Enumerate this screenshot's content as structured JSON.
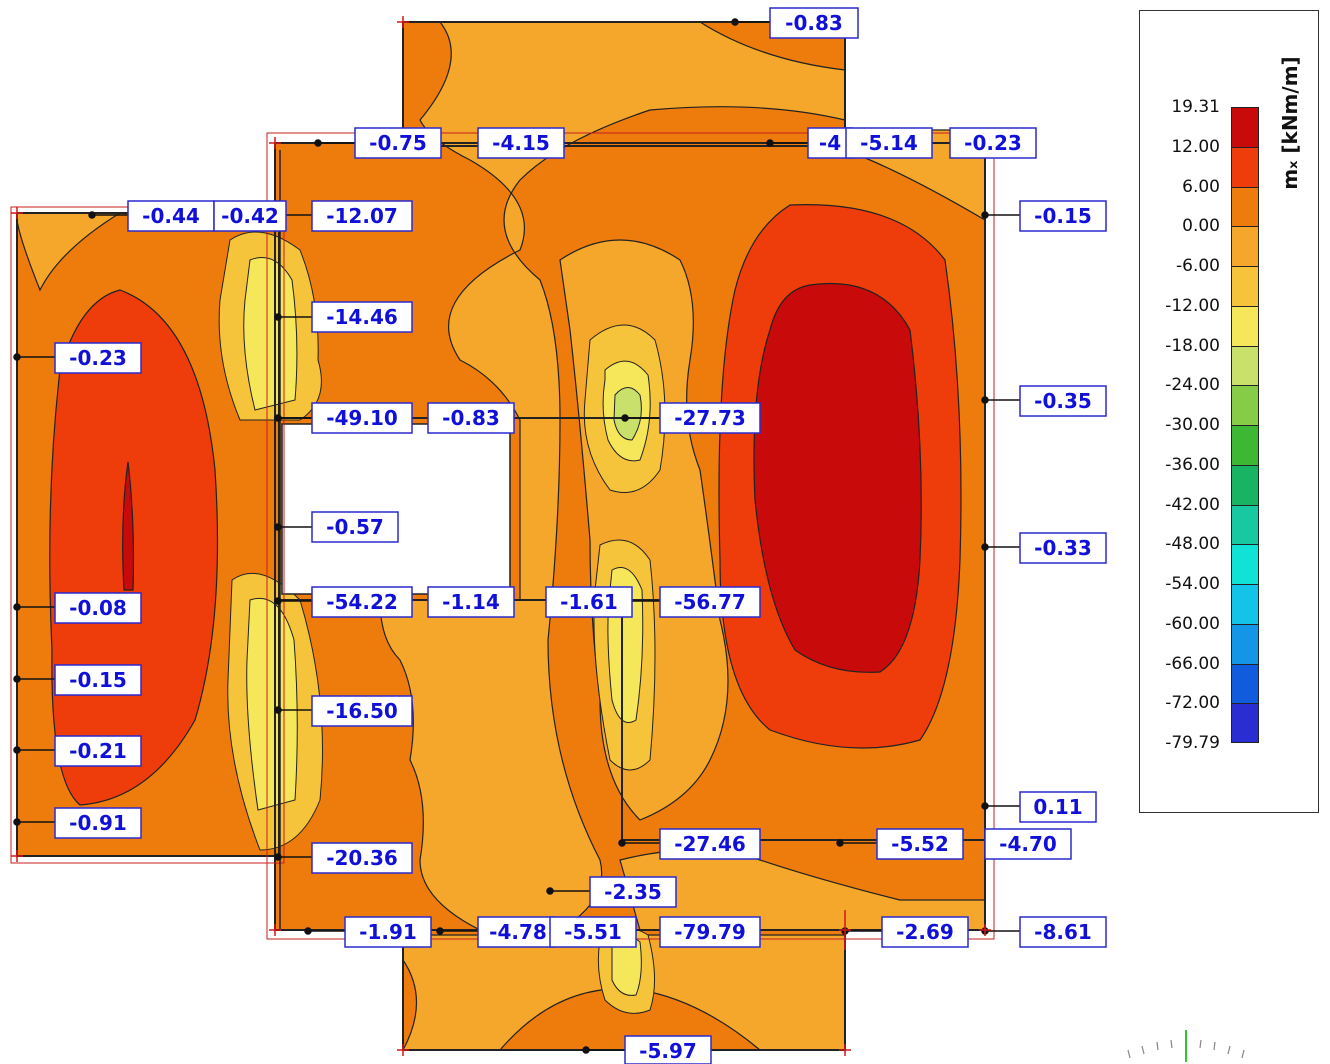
{
  "legend": {
    "title": "mₓ [kNm/m]",
    "values": [
      "19.31",
      "12.00",
      "6.00",
      "0.00",
      "-6.00",
      "-12.00",
      "-18.00",
      "-24.00",
      "-30.00",
      "-36.00",
      "-42.00",
      "-48.00",
      "-54.00",
      "-60.00",
      "-66.00",
      "-72.00",
      "-79.79"
    ],
    "colors": [
      "#c80a0a",
      "#ee3c0a",
      "#ee7c0c",
      "#f4a72a",
      "#f5c43a",
      "#f6e65a",
      "#c9e06a",
      "#86cc46",
      "#3cb834",
      "#18b464",
      "#18c8a0",
      "#10e2d6",
      "#14c4e8",
      "#1496e6",
      "#105cdc",
      "#2a2ed2"
    ]
  },
  "labels": [
    {
      "id": "a01",
      "text": "-0.83"
    },
    {
      "id": "a02",
      "text": "-0.75"
    },
    {
      "id": "a03",
      "text": "-4.15"
    },
    {
      "id": "a04",
      "text": "-4"
    },
    {
      "id": "a05",
      "text": "-5.14"
    },
    {
      "id": "a06",
      "text": "-0.23"
    },
    {
      "id": "a07",
      "text": "-0.44"
    },
    {
      "id": "a08",
      "text": "-0.42"
    },
    {
      "id": "a09",
      "text": "-12.07"
    },
    {
      "id": "a10",
      "text": "-0.15"
    },
    {
      "id": "a11",
      "text": "-14.46"
    },
    {
      "id": "a12",
      "text": "-0.23"
    },
    {
      "id": "a13",
      "text": "-0.35"
    },
    {
      "id": "a14",
      "text": "-49.10"
    },
    {
      "id": "a15",
      "text": "-0.83"
    },
    {
      "id": "a16",
      "text": "-27.73"
    },
    {
      "id": "a17",
      "text": "-0.57"
    },
    {
      "id": "a18",
      "text": "-0.33"
    },
    {
      "id": "a19",
      "text": "-54.22"
    },
    {
      "id": "a20",
      "text": "-1.14"
    },
    {
      "id": "a21",
      "text": "-1.61"
    },
    {
      "id": "a22",
      "text": "-56.77"
    },
    {
      "id": "a23",
      "text": "-0.08"
    },
    {
      "id": "a24",
      "text": "-0.15"
    },
    {
      "id": "a25",
      "text": "-16.50"
    },
    {
      "id": "a26",
      "text": "-0.21"
    },
    {
      "id": "a27",
      "text": "-0.91"
    },
    {
      "id": "a28",
      "text": "0.11"
    },
    {
      "id": "a29",
      "text": "-27.46"
    },
    {
      "id": "a30",
      "text": "-5.52"
    },
    {
      "id": "a31",
      "text": "-4.70"
    },
    {
      "id": "a32",
      "text": "-20.36"
    },
    {
      "id": "a33",
      "text": "-2.35"
    },
    {
      "id": "a34",
      "text": "-1.91"
    },
    {
      "id": "a35",
      "text": "-4.78"
    },
    {
      "id": "a36",
      "text": "-5.51"
    },
    {
      "id": "a37",
      "text": "-79.79"
    },
    {
      "id": "a38",
      "text": "-2.69"
    },
    {
      "id": "a39",
      "text": "-8.61"
    },
    {
      "id": "a40",
      "text": "-5.97"
    }
  ]
}
